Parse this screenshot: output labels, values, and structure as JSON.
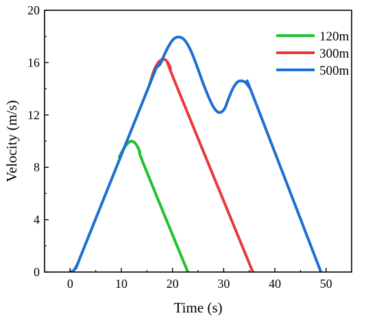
{
  "chart_data": {
    "type": "line",
    "title": "",
    "xlabel": "Time (s)",
    "ylabel": "Velocity (m/s)",
    "xlim": [
      -5,
      55
    ],
    "ylim": [
      0,
      20
    ],
    "x_ticks": [
      0,
      10,
      20,
      30,
      40,
      50
    ],
    "y_ticks": [
      0,
      4,
      8,
      12,
      16,
      20
    ],
    "x_tick_labels": [
      "0",
      "10",
      "20",
      "30",
      "40",
      "50"
    ],
    "y_tick_labels": [
      "0",
      "4",
      "8",
      "12",
      "16",
      "20"
    ],
    "grid": false,
    "legend_position": "top-right",
    "series": [
      {
        "name": "120m",
        "color": "#1fc22d",
        "points": [
          [
            9.6,
            8.8
          ],
          [
            10.5,
            9.45
          ],
          [
            11.3,
            9.85
          ],
          [
            12.0,
            10.0
          ],
          [
            12.8,
            9.8
          ],
          [
            13.6,
            9.2
          ],
          [
            14.4,
            8.2
          ],
          [
            23.0,
            0
          ]
        ]
      },
      {
        "name": "300m",
        "color": "#e8383e",
        "points": [
          [
            15.5,
            14.3
          ],
          [
            16.3,
            15.3
          ],
          [
            17.1,
            15.95
          ],
          [
            18.0,
            16.25
          ],
          [
            18.8,
            16.15
          ],
          [
            19.6,
            15.6
          ],
          [
            20.4,
            14.6
          ],
          [
            35.7,
            0
          ]
        ]
      },
      {
        "name": "500m",
        "color": "#1c6fd1",
        "points": [
          [
            0,
            0
          ],
          [
            0.5,
            0.06
          ],
          [
            1.0,
            0.3
          ],
          [
            1.6,
            0.75
          ],
          [
            2.3,
            1.45
          ],
          [
            15.5,
            14.3
          ],
          [
            16.7,
            15.5
          ],
          [
            17.6,
            15.9
          ],
          [
            18.4,
            16.6
          ],
          [
            19.3,
            17.3
          ],
          [
            20.2,
            17.8
          ],
          [
            21.0,
            17.95
          ],
          [
            21.8,
            17.9
          ],
          [
            22.6,
            17.6
          ],
          [
            23.6,
            16.9
          ],
          [
            24.8,
            15.7
          ],
          [
            26.2,
            14.2
          ],
          [
            27.6,
            12.9
          ],
          [
            28.6,
            12.3
          ],
          [
            29.4,
            12.2
          ],
          [
            30.2,
            12.5
          ],
          [
            31.0,
            13.3
          ],
          [
            31.9,
            14.1
          ],
          [
            32.8,
            14.55
          ],
          [
            33.5,
            14.6
          ],
          [
            34.2,
            14.5
          ],
          [
            35.0,
            14.1
          ],
          [
            35.8,
            13.4
          ],
          [
            49.0,
            0
          ]
        ]
      }
    ]
  }
}
